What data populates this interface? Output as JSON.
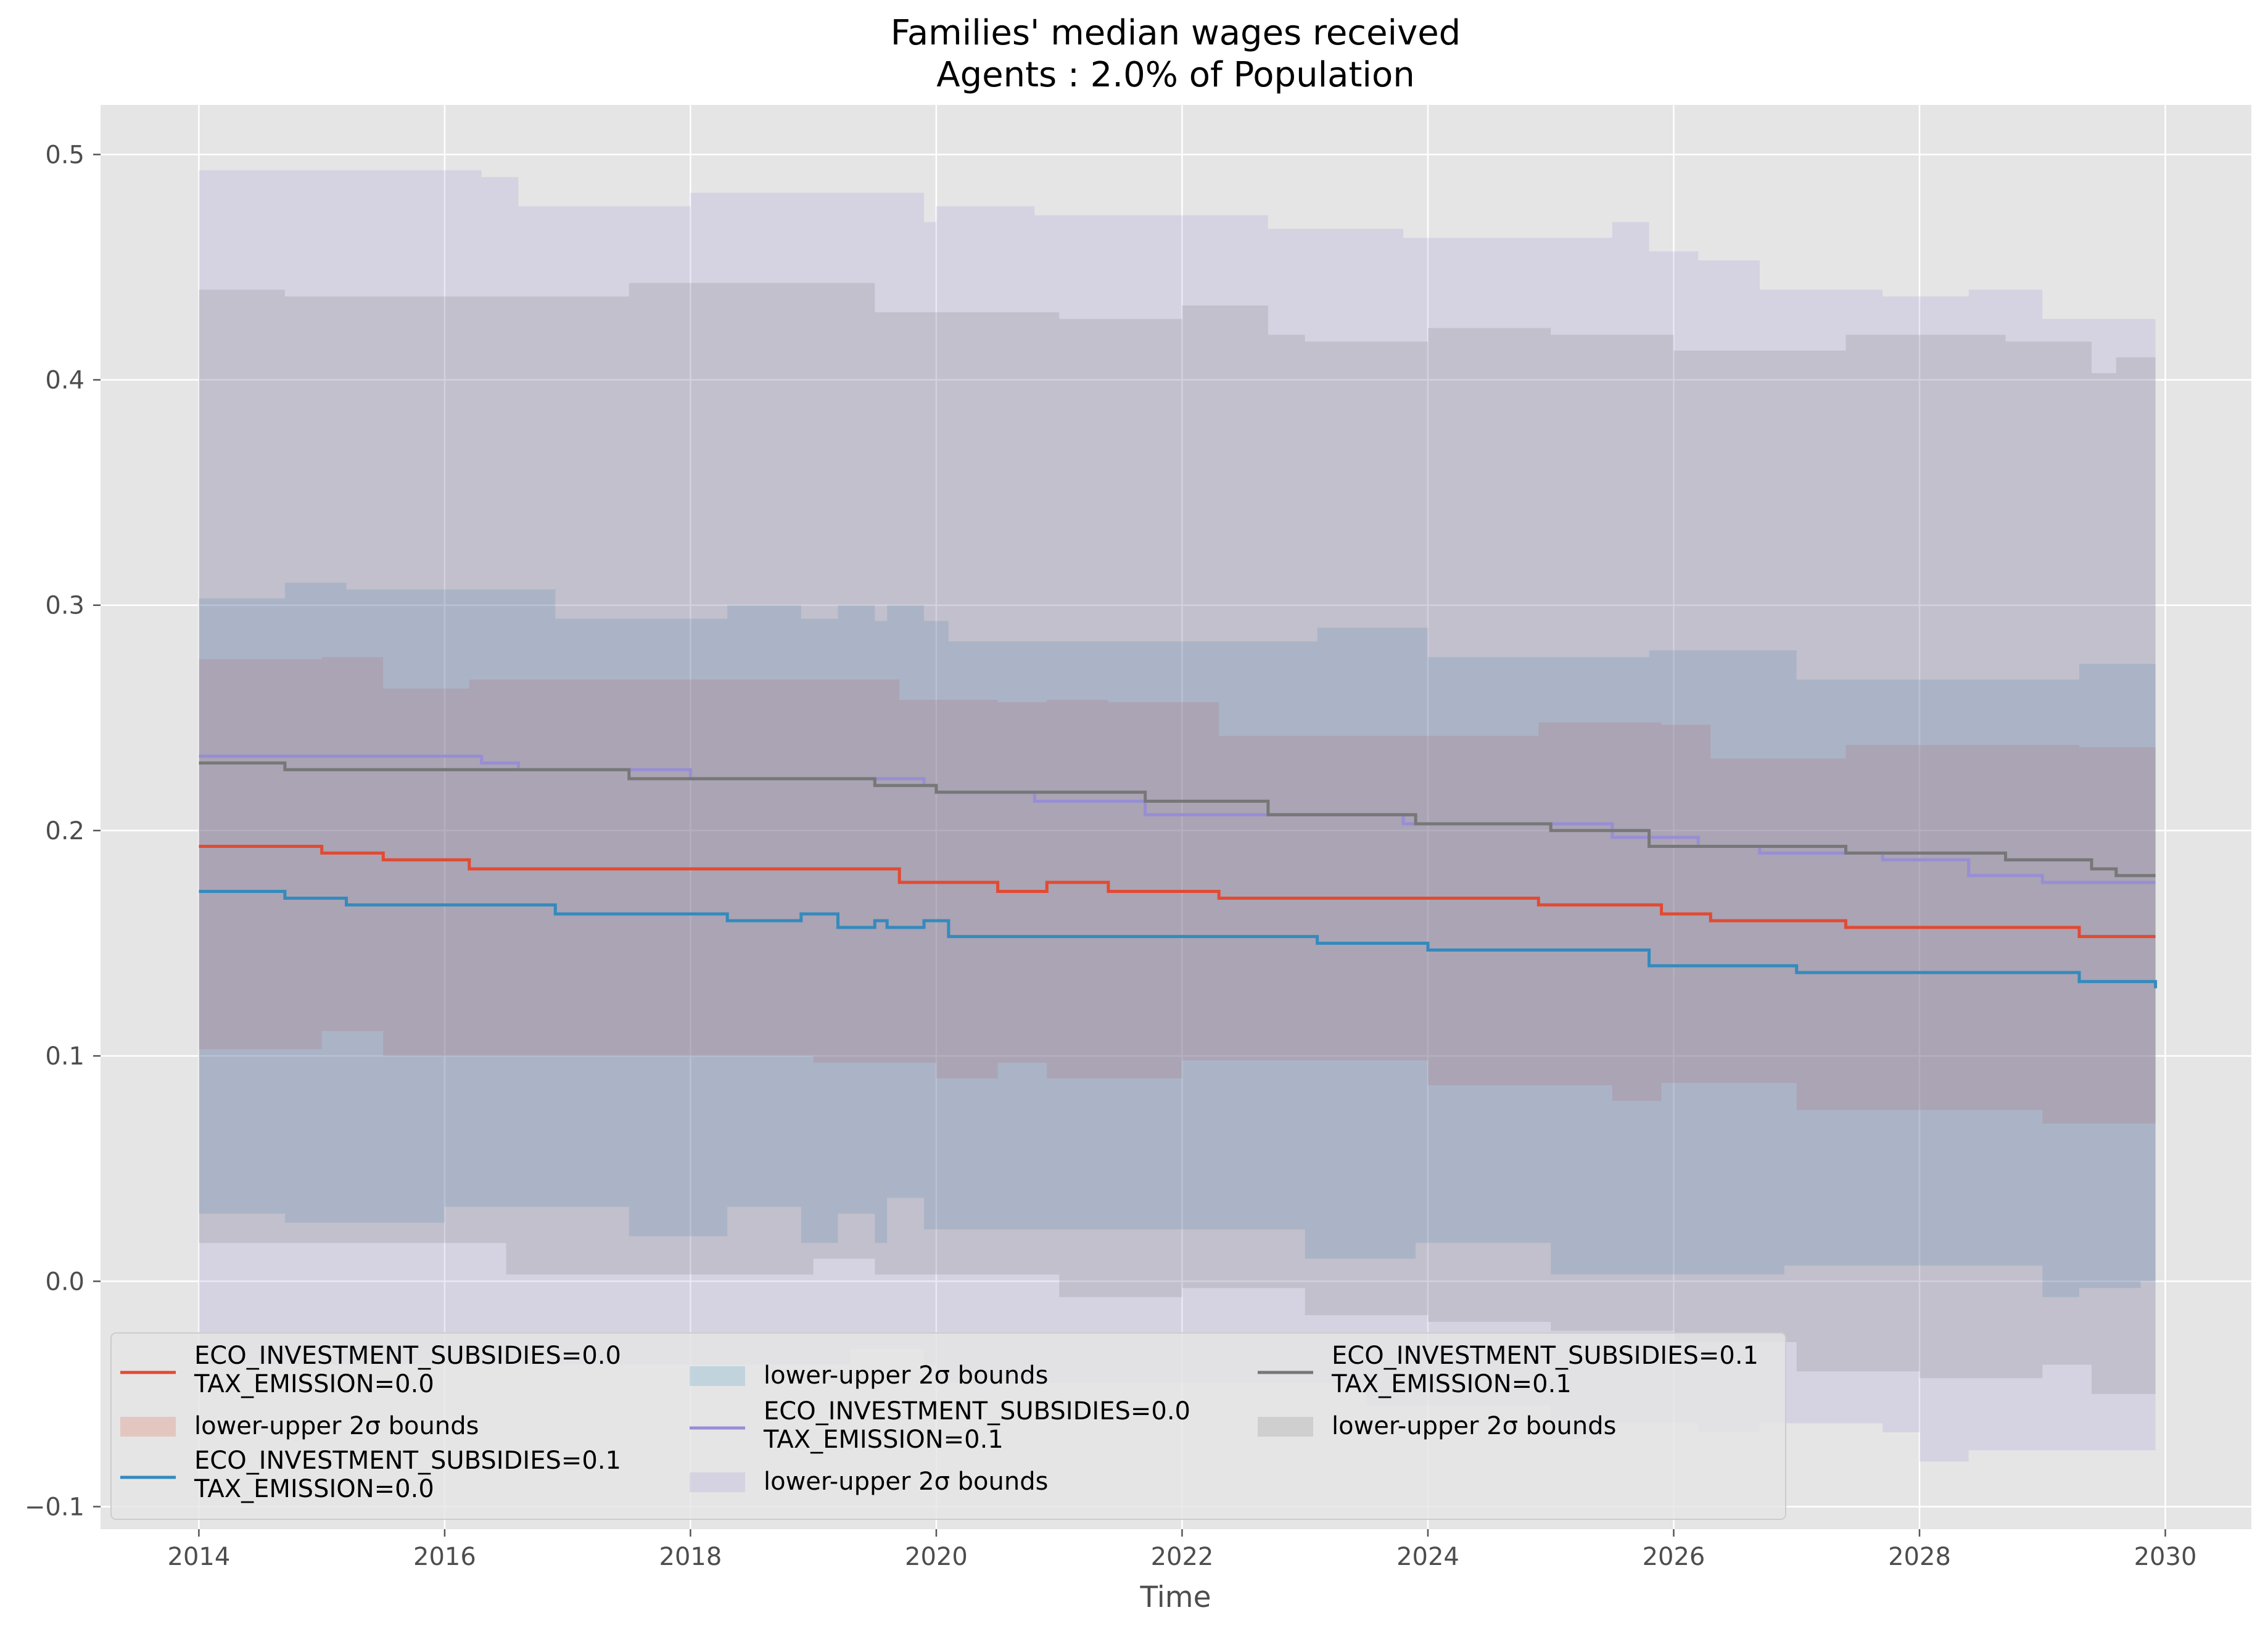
{
  "chart_data": {
    "type": "line",
    "title": "Families' median wages received",
    "subtitle": "Agents : 2.0% of Population",
    "xlabel": "Time",
    "ylabel": "",
    "xlim": [
      2013.2,
      2030.7
    ],
    "ylim": [
      -0.11,
      0.522
    ],
    "xticks": [
      2014,
      2016,
      2018,
      2020,
      2022,
      2024,
      2026,
      2028,
      2030
    ],
    "yticks": [
      -0.1,
      0.0,
      0.1,
      0.2,
      0.3,
      0.4,
      0.5
    ],
    "xtick_labels": [
      "2014",
      "2016",
      "2018",
      "2020",
      "2022",
      "2024",
      "2026",
      "2028",
      "2030"
    ],
    "ytick_labels": [
      "−0.1",
      "0.0",
      "0.1",
      "0.2",
      "0.3",
      "0.4",
      "0.5"
    ],
    "grid": true,
    "legend_position": "lower-left",
    "series": [
      {
        "name": "ECO_INVESTMENT_SUBSIDIES=0.0\nTAX_EMISSION=0.0",
        "color": "#e24a33",
        "band_label": "lower-upper 2σ bounds",
        "x": [
          2014.0,
          2015.0,
          2015.5,
          2016.2,
          2017.0,
          2018.0,
          2019.0,
          2019.7,
          2020.0,
          2020.5,
          2020.9,
          2021.4,
          2022.0,
          2022.3,
          2023.0,
          2024.0,
          2024.9,
          2025.5,
          2025.9,
          2026.3,
          2027.0,
          2027.4,
          2028.0,
          2029.0,
          2029.3,
          2029.92
        ],
        "y": [
          0.193,
          0.19,
          0.187,
          0.183,
          0.183,
          0.183,
          0.183,
          0.177,
          0.177,
          0.173,
          0.177,
          0.173,
          0.173,
          0.17,
          0.17,
          0.17,
          0.167,
          0.167,
          0.163,
          0.16,
          0.16,
          0.157,
          0.157,
          0.157,
          0.153,
          0.153
        ],
        "lower": [
          0.11,
          0.103,
          0.111,
          0.1,
          0.1,
          0.1,
          0.1,
          0.097,
          0.097,
          0.09,
          0.097,
          0.09,
          0.09,
          0.098,
          0.098,
          0.098,
          0.087,
          0.087,
          0.08,
          0.088,
          0.088,
          0.076,
          0.076,
          0.076,
          0.07,
          0.07
        ],
        "upper": [
          0.276,
          0.277,
          0.263,
          0.267,
          0.267,
          0.267,
          0.267,
          0.258,
          0.258,
          0.257,
          0.258,
          0.257,
          0.257,
          0.242,
          0.242,
          0.242,
          0.248,
          0.248,
          0.247,
          0.232,
          0.232,
          0.238,
          0.238,
          0.238,
          0.237,
          0.237
        ]
      },
      {
        "name": "ECO_INVESTMENT_SUBSIDIES=0.1\nTAX_EMISSION=0.0",
        "color": "#348abd",
        "band_label": "lower-upper 2σ bounds",
        "x": [
          2014.0,
          2014.7,
          2015.2,
          2016.0,
          2016.9,
          2017.5,
          2018.3,
          2018.9,
          2019.2,
          2019.5,
          2019.6,
          2019.9,
          2020.1,
          2021.0,
          2022.0,
          2023.0,
          2023.1,
          2023.9,
          2024.0,
          2025.0,
          2025.8,
          2026.0,
          2026.9,
          2027.0,
          2028.0,
          2029.0,
          2029.3,
          2029.8,
          2029.92
        ],
        "y": [
          0.173,
          0.17,
          0.167,
          0.167,
          0.163,
          0.163,
          0.16,
          0.163,
          0.157,
          0.16,
          0.157,
          0.16,
          0.153,
          0.153,
          0.153,
          0.153,
          0.15,
          0.15,
          0.147,
          0.147,
          0.14,
          0.14,
          0.14,
          0.137,
          0.137,
          0.137,
          0.133,
          0.133,
          0.13
        ],
        "lower": [
          0.043,
          0.03,
          0.026,
          0.026,
          0.033,
          0.033,
          0.02,
          0.033,
          0.017,
          0.03,
          0.017,
          0.037,
          0.023,
          0.023,
          0.023,
          0.023,
          0.01,
          0.01,
          0.017,
          0.017,
          0.003,
          0.003,
          0.003,
          0.007,
          0.007,
          0.007,
          -0.007,
          -0.003,
          0.0
        ],
        "upper": [
          0.303,
          0.31,
          0.307,
          0.307,
          0.294,
          0.294,
          0.3,
          0.294,
          0.3,
          0.293,
          0.3,
          0.293,
          0.284,
          0.284,
          0.284,
          0.284,
          0.29,
          0.29,
          0.277,
          0.277,
          0.28,
          0.28,
          0.28,
          0.267,
          0.267,
          0.267,
          0.274,
          0.274,
          0.261
        ]
      },
      {
        "name": "ECO_INVESTMENT_SUBSIDIES=0.0\nTAX_EMISSION=0.1",
        "color": "#988ed5",
        "band_label": "lower-upper 2σ bounds",
        "x": [
          2014.0,
          2015.0,
          2016.3,
          2016.6,
          2017.0,
          2017.5,
          2018.0,
          2019.0,
          2019.3,
          2019.9,
          2020.0,
          2020.8,
          2021.7,
          2022.0,
          2022.7,
          2023.5,
          2023.8,
          2024.0,
          2025.0,
          2025.5,
          2025.8,
          2026.2,
          2026.7,
          2027.0,
          2027.7,
          2028.0,
          2028.4,
          2029.0,
          2029.92
        ],
        "y": [
          0.233,
          0.233,
          0.23,
          0.227,
          0.227,
          0.227,
          0.223,
          0.223,
          0.223,
          0.22,
          0.217,
          0.213,
          0.207,
          0.207,
          0.207,
          0.207,
          0.203,
          0.203,
          0.203,
          0.197,
          0.197,
          0.193,
          0.19,
          0.19,
          0.187,
          0.187,
          0.18,
          0.177,
          0.177
        ],
        "lower": [
          -0.027,
          -0.037,
          -0.037,
          -0.037,
          -0.037,
          -0.037,
          -0.037,
          -0.037,
          -0.037,
          -0.03,
          -0.037,
          -0.045,
          -0.045,
          -0.045,
          -0.045,
          -0.045,
          -0.055,
          -0.055,
          -0.055,
          -0.07,
          -0.063,
          -0.063,
          -0.067,
          -0.063,
          -0.063,
          -0.067,
          -0.08,
          -0.075,
          -0.075
        ],
        "upper": [
          0.493,
          0.493,
          0.49,
          0.477,
          0.477,
          0.477,
          0.483,
          0.483,
          0.483,
          0.47,
          0.477,
          0.473,
          0.473,
          0.473,
          0.467,
          0.467,
          0.463,
          0.463,
          0.463,
          0.47,
          0.457,
          0.453,
          0.44,
          0.44,
          0.437,
          0.437,
          0.44,
          0.427,
          0.427
        ]
      },
      {
        "name": "ECO_INVESTMENT_SUBSIDIES=0.1\nTAX_EMISSION=0.1",
        "color": "#777777",
        "band_label": "lower-upper 2σ bounds",
        "x": [
          2014.0,
          2014.7,
          2015.5,
          2016.5,
          2017.5,
          2018.0,
          2019.0,
          2019.5,
          2020.0,
          2021.0,
          2021.7,
          2022.0,
          2022.7,
          2023.0,
          2023.9,
          2024.0,
          2025.0,
          2025.8,
          2026.0,
          2027.0,
          2027.4,
          2028.0,
          2028.7,
          2029.0,
          2029.4,
          2029.6,
          2029.92
        ],
        "y": [
          0.23,
          0.227,
          0.227,
          0.227,
          0.223,
          0.223,
          0.223,
          0.22,
          0.217,
          0.217,
          0.213,
          0.213,
          0.207,
          0.207,
          0.203,
          0.203,
          0.2,
          0.193,
          0.193,
          0.193,
          0.19,
          0.19,
          0.187,
          0.187,
          0.183,
          0.18,
          0.18
        ],
        "lower": [
          0.02,
          0.017,
          0.017,
          0.017,
          0.003,
          0.003,
          0.003,
          0.01,
          0.003,
          0.003,
          -0.007,
          -0.007,
          -0.003,
          -0.003,
          -0.015,
          -0.015,
          -0.018,
          -0.022,
          -0.022,
          -0.027,
          -0.04,
          -0.04,
          -0.043,
          -0.043,
          -0.037,
          -0.05,
          -0.05
        ],
        "upper": [
          0.44,
          0.437,
          0.437,
          0.437,
          0.443,
          0.443,
          0.443,
          0.43,
          0.43,
          0.427,
          0.427,
          0.433,
          0.42,
          0.417,
          0.417,
          0.423,
          0.42,
          0.42,
          0.413,
          0.413,
          0.42,
          0.42,
          0.417,
          0.417,
          0.403,
          0.41,
          0.41
        ]
      }
    ]
  }
}
